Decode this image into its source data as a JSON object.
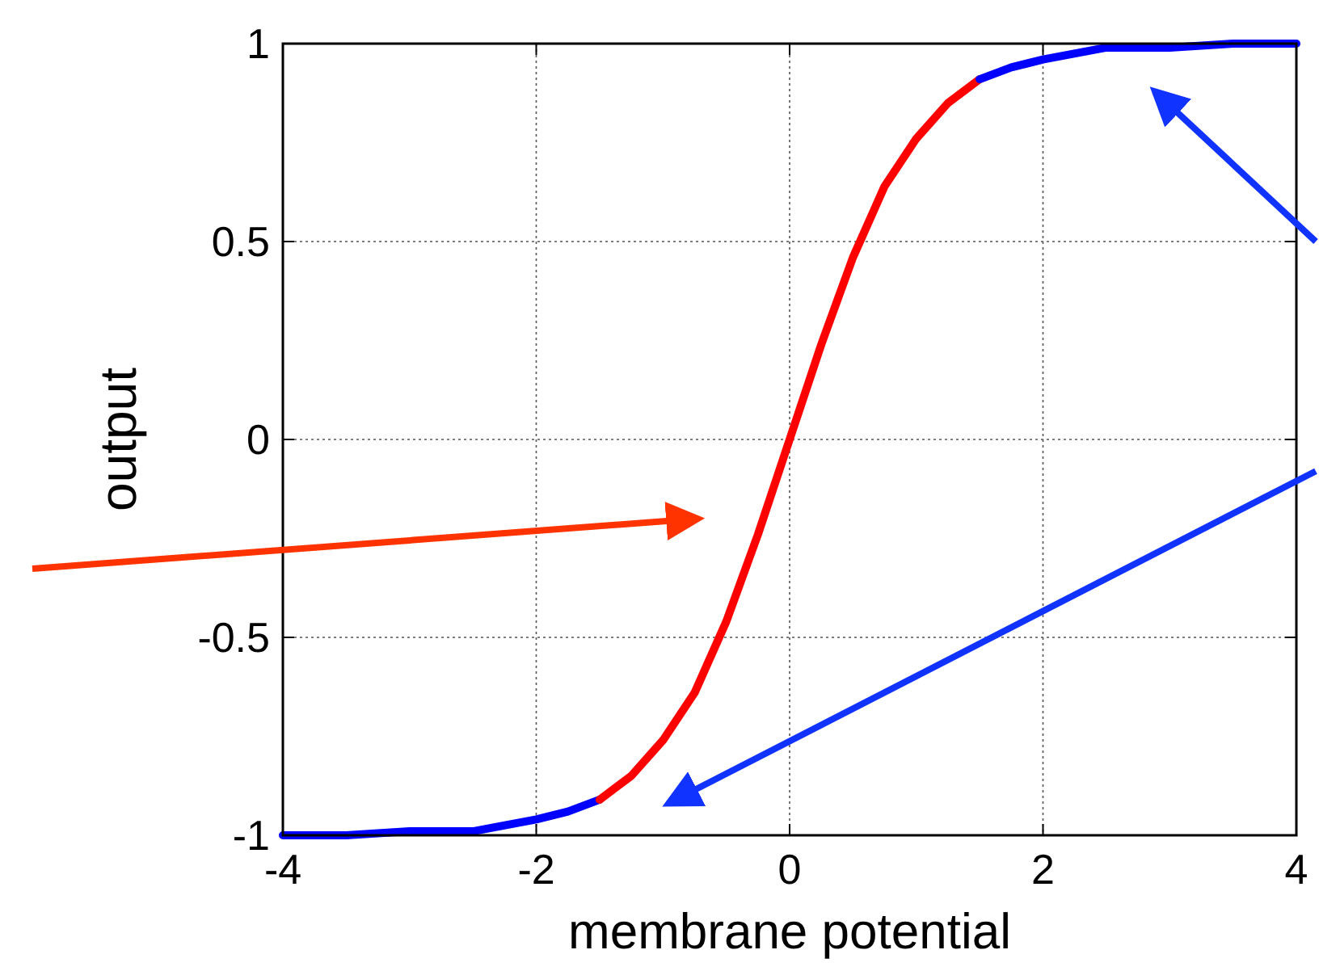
{
  "chart_data": {
    "type": "line",
    "xlabel": "membrane potential",
    "ylabel": "output",
    "xlim": [
      -4,
      4
    ],
    "ylim": [
      -1,
      1
    ],
    "xticks": [
      -4,
      -2,
      0,
      2,
      4
    ],
    "yticks": [
      -1,
      -0.5,
      0,
      0.5,
      1
    ],
    "grid": true,
    "marker": "none",
    "line_style": "solid",
    "series": [
      {
        "color": "#0000ff",
        "x": [
          -4,
          -3.5,
          -3,
          -2.5,
          -2,
          -1.75,
          -1.5
        ],
        "values": [
          -1,
          -1,
          -0.99,
          -0.99,
          -0.96,
          -0.94,
          -0.91
        ]
      },
      {
        "color": "#ff0000",
        "x": [
          -1.5,
          -1.25,
          -1,
          -0.75,
          -0.5,
          -0.25,
          0,
          0.25,
          0.5,
          0.75,
          1,
          1.25,
          1.5
        ],
        "values": [
          -0.91,
          -0.85,
          -0.76,
          -0.64,
          -0.46,
          -0.24,
          0,
          0.24,
          0.46,
          0.64,
          0.76,
          0.85,
          0.91
        ]
      },
      {
        "color": "#0000ff",
        "x": [
          1.5,
          1.75,
          2,
          2.5,
          3,
          3.5,
          4
        ],
        "values": [
          0.91,
          0.94,
          0.96,
          0.99,
          0.99,
          1,
          1
        ]
      }
    ]
  }
}
